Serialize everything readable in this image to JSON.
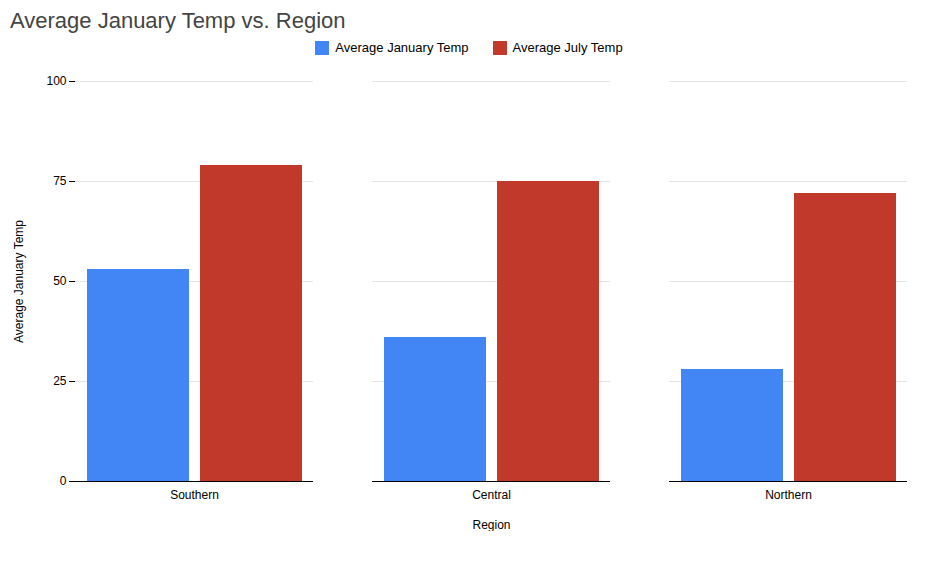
{
  "chart_data": {
    "type": "bar",
    "title": "Average January Temp vs. Region",
    "xlabel": "Region",
    "ylabel": "Average January Temp",
    "categories": [
      "Southern",
      "Central",
      "Northern"
    ],
    "series": [
      {
        "name": "Average January Temp",
        "color": "#4285F4",
        "values": [
          53,
          36,
          28
        ]
      },
      {
        "name": "Average July Temp",
        "color": "#C0392B",
        "values": [
          79,
          75,
          72
        ]
      }
    ],
    "ylim": [
      0,
      100
    ],
    "yticks": [
      0,
      25,
      50,
      75,
      100
    ],
    "grid": true,
    "legend": "top"
  }
}
